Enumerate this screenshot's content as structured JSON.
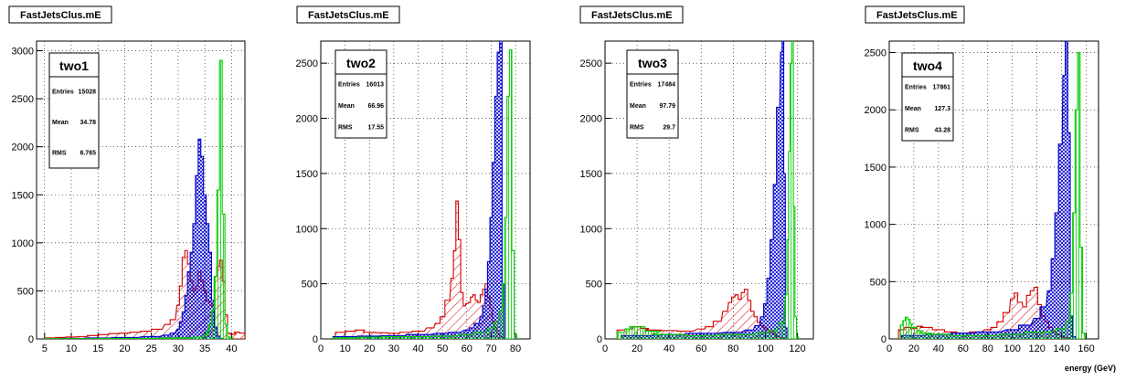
{
  "chart_data": [
    {
      "type": "histogram",
      "title": "FastJetsClus.mE",
      "xlim": [
        3.5,
        42.5
      ],
      "ylim": [
        0,
        3100
      ],
      "xticks": [
        5,
        10,
        15,
        20,
        25,
        30,
        35,
        40
      ],
      "yticks": [
        0,
        500,
        1000,
        1500,
        2000,
        2500,
        3000
      ],
      "grid": true,
      "stats": {
        "name": "two1",
        "entries": "15028",
        "mean": "34.78",
        "rms": "6.765"
      },
      "series": [
        {
          "color": "#d40000",
          "fill": "hatch-diagonal",
          "x": [
            6,
            8,
            10,
            12,
            14,
            16,
            18,
            20,
            22,
            24,
            26,
            28,
            29,
            30,
            30.5,
            31,
            31.5,
            32,
            32.5,
            33,
            33.5,
            34,
            34.5,
            35,
            35.5,
            36,
            36.5,
            37,
            37.5,
            38,
            38.5,
            39,
            39.5,
            40,
            40.5,
            41,
            42
          ],
          "y": [
            10,
            15,
            20,
            25,
            35,
            45,
            55,
            60,
            70,
            80,
            100,
            150,
            200,
            350,
            550,
            850,
            920,
            780,
            600,
            500,
            550,
            700,
            600,
            500,
            400,
            380,
            350,
            650,
            750,
            820,
            600,
            250,
            60,
            45,
            50,
            70,
            60
          ]
        },
        {
          "color": "#0000cc",
          "fill": "hatch-cross",
          "x": [
            10,
            15,
            20,
            25,
            28,
            29,
            30,
            30.5,
            31,
            31.5,
            32,
            32.5,
            33,
            33.5,
            34,
            34.5,
            35,
            35.5,
            36,
            36.5,
            37,
            37.5,
            38
          ],
          "y": [
            5,
            10,
            15,
            25,
            40,
            60,
            100,
            180,
            280,
            450,
            700,
            900,
            1200,
            1700,
            2080,
            1900,
            1500,
            1200,
            900,
            400,
            120,
            30,
            5
          ]
        },
        {
          "color": "#00cc00",
          "fill": "hatch-vertical",
          "x": [
            10,
            20,
            30,
            34,
            35,
            35.5,
            36,
            36.5,
            37,
            37.5,
            38,
            38.5,
            39,
            39.5,
            40
          ],
          "y": [
            3,
            5,
            10,
            20,
            40,
            80,
            150,
            300,
            650,
            1550,
            2900,
            1300,
            150,
            20,
            5
          ]
        }
      ]
    },
    {
      "type": "histogram",
      "title": "FastJetsClus.mE",
      "xlim": [
        0,
        86
      ],
      "ylim": [
        0,
        2700
      ],
      "xticks": [
        0,
        10,
        20,
        30,
        40,
        50,
        60,
        70,
        80
      ],
      "yticks": [
        0,
        500,
        1000,
        1500,
        2000,
        2500
      ],
      "grid": true,
      "stats": {
        "name": "two2",
        "entries": "16013",
        "mean": "66.96",
        "rms": "17.55"
      },
      "series": [
        {
          "color": "#d40000",
          "fill": "hatch-diagonal",
          "x": [
            8,
            12,
            16,
            20,
            25,
            30,
            35,
            40,
            45,
            48,
            50,
            52,
            54,
            55,
            56,
            57,
            58,
            59,
            60,
            61,
            62,
            63,
            64,
            65,
            66,
            67,
            68,
            69,
            70,
            71,
            72,
            73,
            74,
            75
          ],
          "y": [
            60,
            70,
            80,
            60,
            55,
            50,
            60,
            70,
            100,
            140,
            200,
            350,
            550,
            800,
            1250,
            900,
            420,
            300,
            320,
            330,
            380,
            400,
            350,
            330,
            400,
            450,
            500,
            380,
            280,
            160,
            100,
            50,
            20,
            10
          ]
        },
        {
          "color": "#0000cc",
          "fill": "hatch-cross",
          "x": [
            10,
            20,
            30,
            40,
            50,
            55,
            60,
            62,
            64,
            66,
            67,
            68,
            69,
            70,
            71,
            72,
            73,
            74,
            75
          ],
          "y": [
            20,
            25,
            30,
            40,
            50,
            60,
            80,
            100,
            140,
            200,
            300,
            450,
            700,
            1100,
            1600,
            2200,
            2600,
            2700,
            500
          ]
        },
        {
          "color": "#00cc00",
          "fill": "hatch-vertical",
          "x": [
            10,
            20,
            30,
            40,
            50,
            60,
            65,
            70,
            72,
            74,
            75,
            76,
            77,
            78,
            79,
            80
          ],
          "y": [
            10,
            15,
            20,
            20,
            25,
            40,
            60,
            100,
            150,
            260,
            500,
            1100,
            2200,
            2620,
            800,
            40
          ]
        }
      ]
    },
    {
      "type": "histogram",
      "title": "FastJetsClus.mE",
      "xlim": [
        0,
        130
      ],
      "ylim": [
        0,
        2700
      ],
      "xticks": [
        0,
        20,
        40,
        60,
        80,
        100,
        120
      ],
      "yticks": [
        0,
        500,
        1000,
        1500,
        2000,
        2500
      ],
      "grid": true,
      "stats": {
        "name": "two3",
        "entries": "17484",
        "mean": "97.79",
        "rms": "29.7"
      },
      "series": [
        {
          "color": "#d40000",
          "fill": "hatch-diagonal",
          "x": [
            10,
            15,
            20,
            25,
            30,
            40,
            50,
            60,
            65,
            70,
            75,
            78,
            80,
            82,
            84,
            86,
            88,
            90,
            92,
            94,
            96,
            98,
            100,
            102,
            104,
            106,
            108,
            110,
            112
          ],
          "y": [
            80,
            90,
            110,
            95,
            80,
            75,
            70,
            90,
            110,
            160,
            250,
            330,
            380,
            400,
            360,
            420,
            450,
            350,
            250,
            200,
            150,
            120,
            100,
            80,
            60,
            40,
            20,
            10,
            5
          ]
        },
        {
          "color": "#0000cc",
          "fill": "hatch-cross",
          "x": [
            20,
            40,
            60,
            80,
            90,
            95,
            98,
            100,
            102,
            104,
            106,
            108,
            110,
            111,
            112,
            113
          ],
          "y": [
            30,
            40,
            50,
            60,
            80,
            120,
            200,
            320,
            550,
            900,
            1400,
            2100,
            2600,
            2750,
            1500,
            100
          ]
        },
        {
          "color": "#00cc00",
          "fill": "hatch-vertical",
          "x": [
            10,
            15,
            20,
            30,
            40,
            60,
            80,
            100,
            105,
            110,
            113,
            114,
            115,
            116,
            117,
            118,
            119,
            120
          ],
          "y": [
            60,
            90,
            110,
            70,
            40,
            30,
            40,
            60,
            80,
            150,
            400,
            900,
            1700,
            2500,
            2750,
            1200,
            200,
            20
          ]
        }
      ]
    },
    {
      "type": "histogram",
      "title": "FastJetsClus.mE",
      "xlim": [
        0,
        170
      ],
      "ylim": [
        0,
        2600
      ],
      "xticks": [
        0,
        20,
        40,
        60,
        80,
        100,
        120,
        140,
        160
      ],
      "yticks": [
        0,
        500,
        1000,
        1500,
        2000,
        2500
      ],
      "grid": true,
      "stats": {
        "name": "two4",
        "entries": "17861",
        "mean": "127.3",
        "rms": "43.28"
      },
      "series": [
        {
          "color": "#d40000",
          "fill": "hatch-diagonal",
          "x": [
            10,
            15,
            20,
            25,
            30,
            40,
            50,
            60,
            70,
            80,
            85,
            90,
            95,
            100,
            103,
            106,
            110,
            113,
            116,
            119,
            122,
            125,
            128,
            131,
            134,
            137,
            140,
            143,
            146
          ],
          "y": [
            80,
            100,
            90,
            110,
            100,
            80,
            60,
            50,
            60,
            80,
            100,
            150,
            230,
            350,
            400,
            320,
            280,
            380,
            420,
            450,
            300,
            200,
            150,
            100,
            60,
            40,
            20,
            10,
            5
          ]
        },
        {
          "color": "#0000cc",
          "fill": "hatch-cross",
          "x": [
            20,
            40,
            60,
            80,
            100,
            110,
            120,
            125,
            130,
            133,
            136,
            139,
            142,
            144,
            146,
            148,
            150
          ],
          "y": [
            30,
            40,
            50,
            60,
            80,
            120,
            180,
            280,
            420,
            700,
            1100,
            1700,
            2300,
            2600,
            1800,
            200,
            20
          ]
        },
        {
          "color": "#00cc00",
          "fill": "hatch-vertical",
          "x": [
            10,
            12,
            14,
            16,
            18,
            20,
            25,
            30,
            40,
            60,
            80,
            100,
            120,
            140,
            145,
            148,
            150,
            152,
            154,
            156,
            158
          ],
          "y": [
            120,
            160,
            190,
            170,
            130,
            100,
            70,
            50,
            40,
            30,
            30,
            40,
            60,
            90,
            150,
            400,
            1100,
            2000,
            2500,
            800,
            50
          ]
        }
      ]
    }
  ],
  "x_axis_title": "energy (GeV)"
}
